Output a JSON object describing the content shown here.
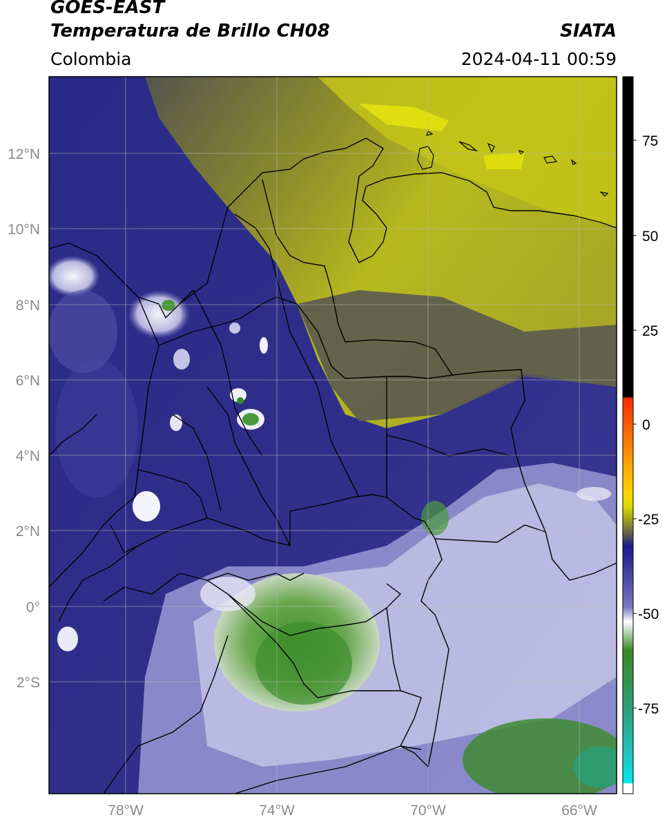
{
  "header": {
    "satellite": "GOES-EAST",
    "product": "Temperatura de Brillo CH08",
    "region": "Colombia",
    "source": "SIATA",
    "datetime": "2024-04-11 00:59"
  },
  "axes": {
    "lat_labels": [
      "12°N",
      "10°N",
      "8°N",
      "6°N",
      "4°N",
      "2°N",
      "0°",
      "2°S"
    ],
    "lon_labels": [
      "78°W",
      "74°W",
      "70°W",
      "66°W"
    ]
  },
  "colorbar": {
    "ticks": [
      "75",
      "50",
      "25",
      "0",
      "-25",
      "-50",
      "-75"
    ],
    "colors": {
      "warm": "#000000",
      "red": "#ff2200",
      "orange": "#ff9900",
      "yellow": "#e6e600",
      "olive": "#8a8a2a",
      "gray": "#555555",
      "navy": "#1a1a8c",
      "lavender": "#9a9ad0",
      "white": "#ffffff",
      "green": "#3a8a28",
      "teal": "#20b8a0",
      "cyan": "#00e0e0"
    }
  }
}
